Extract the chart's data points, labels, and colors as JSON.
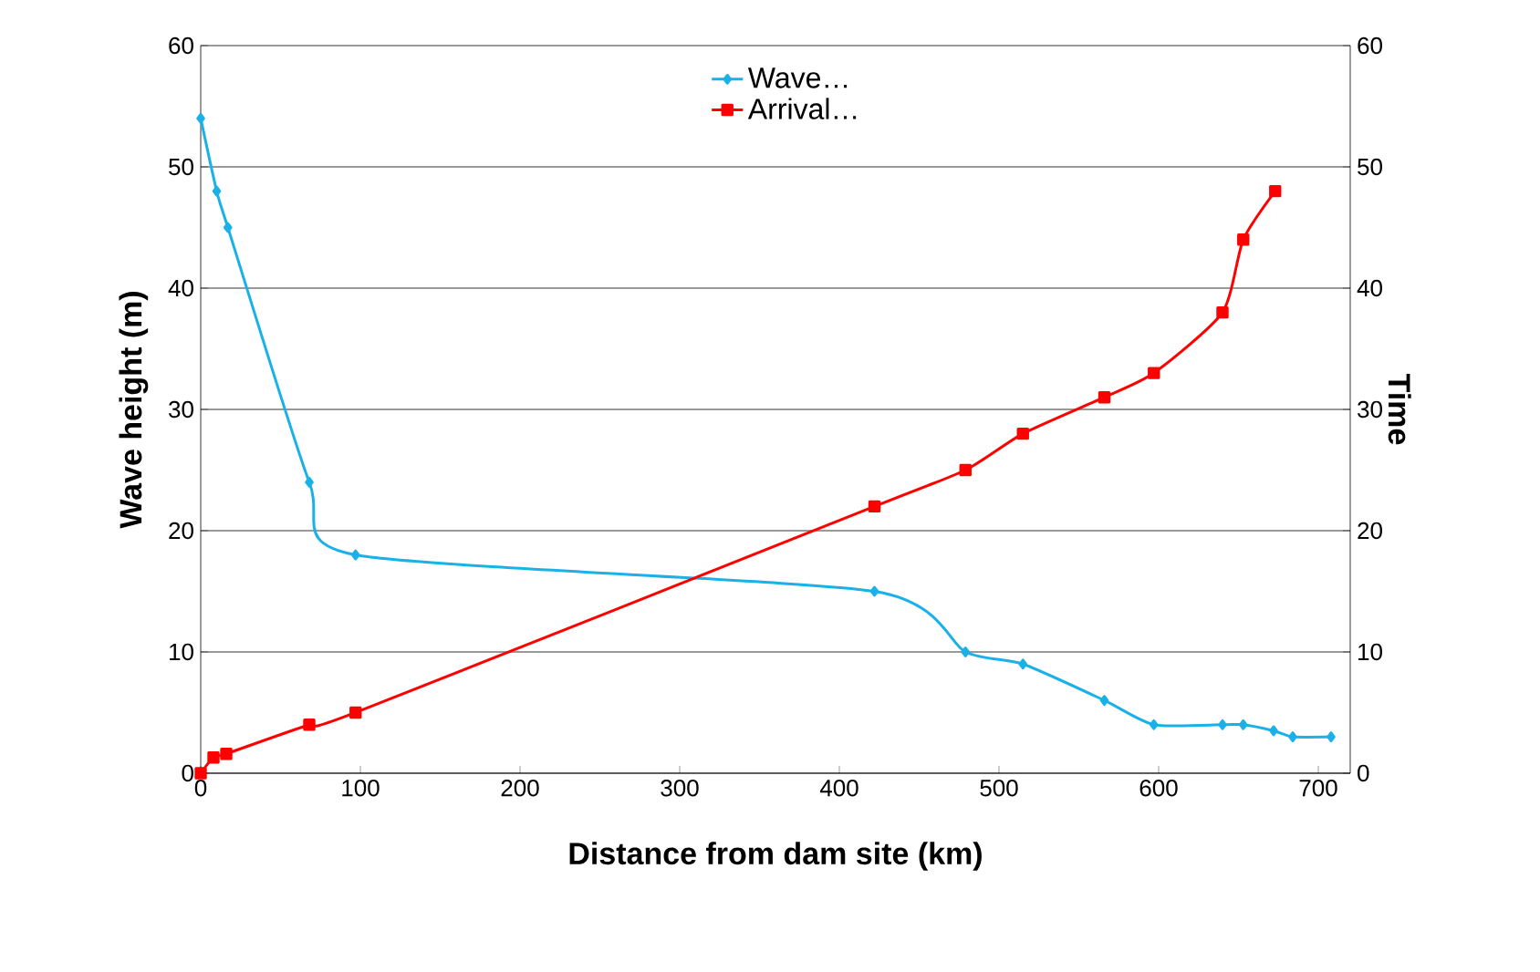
{
  "chart_data": {
    "type": "line",
    "xlabel": "Distance from dam site (km)",
    "ylabel": "Wave height  (m)",
    "y2label": "Time",
    "xlim": [
      0,
      720
    ],
    "xticks": [
      0,
      100,
      200,
      300,
      400,
      500,
      600,
      700
    ],
    "ylim": [
      0,
      60
    ],
    "yticks": [
      0,
      10,
      20,
      30,
      40,
      50,
      60
    ],
    "y2lim": [
      0,
      60
    ],
    "y2ticks": [
      0,
      10,
      20,
      30,
      40,
      50,
      60
    ],
    "grid": "y",
    "legend": "top",
    "line_style": "solid",
    "series": [
      {
        "name": "Wave…",
        "color": "#1ab0e8",
        "marker": "diamond",
        "x": [
          0,
          10,
          17,
          68,
          97,
          422,
          479,
          515,
          566,
          597,
          640,
          653,
          672,
          684,
          708
        ],
        "values": [
          54,
          48,
          45,
          24,
          18,
          15,
          10,
          9,
          6,
          4,
          4,
          4,
          3.5,
          3,
          3
        ]
      },
      {
        "name": "Arrival…",
        "color": "#ff0000",
        "marker": "square",
        "axis": "y2",
        "x": [
          0,
          8,
          16,
          68,
          97,
          422,
          479,
          515,
          566,
          597,
          640,
          653,
          673
        ],
        "values": [
          0,
          1.3,
          1.6,
          4,
          5,
          22,
          25,
          28,
          31,
          33,
          38,
          44,
          48
        ]
      }
    ]
  }
}
